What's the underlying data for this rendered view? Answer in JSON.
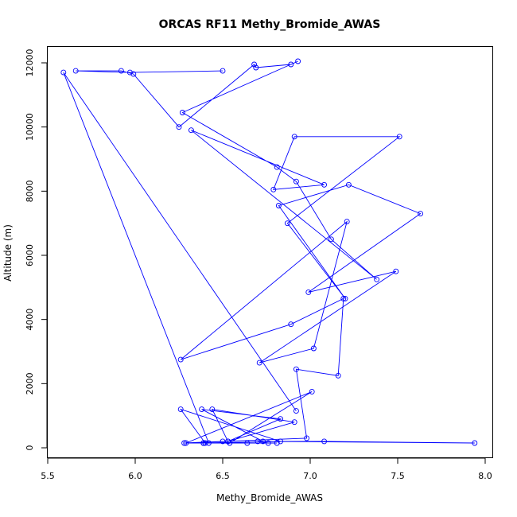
{
  "chart_data": {
    "type": "line",
    "title": "ORCAS RF11 Methy_Bromide_AWAS",
    "xlabel": "Methy_Bromide_AWAS",
    "ylabel": "Altitude (m)",
    "xlim": [
      5.5,
      8.0
    ],
    "ylim": [
      0,
      12000
    ],
    "xticks": [
      "5.5",
      "6.0",
      "6.5",
      "7.0",
      "7.5",
      "8.0"
    ],
    "yticks": [
      "0",
      "2000",
      "4000",
      "6000",
      "8000",
      "10000",
      "12000"
    ],
    "series": [
      {
        "color": "#0000ff",
        "marker": "open-circle",
        "points": [
          [
            6.5,
            11750
          ],
          [
            5.97,
            11700
          ],
          [
            5.66,
            11750
          ],
          [
            5.92,
            11750
          ],
          [
            5.99,
            11650
          ],
          [
            6.25,
            10000
          ],
          [
            6.68,
            11950
          ],
          [
            6.69,
            11850
          ],
          [
            6.89,
            11950
          ],
          [
            6.93,
            12050
          ],
          [
            6.27,
            10450
          ],
          [
            6.81,
            8750
          ],
          [
            6.92,
            8300
          ],
          [
            7.12,
            6500
          ],
          [
            7.38,
            5250
          ],
          [
            6.32,
            9900
          ],
          [
            7.08,
            8200
          ],
          [
            6.79,
            8050
          ],
          [
            6.91,
            9700
          ],
          [
            7.51,
            9700
          ],
          [
            6.87,
            7000
          ],
          [
            7.2,
            4650
          ],
          [
            6.82,
            7550
          ],
          [
            7.22,
            8200
          ],
          [
            7.63,
            7300
          ],
          [
            6.99,
            4850
          ],
          [
            7.49,
            5500
          ],
          [
            6.71,
            2650
          ],
          [
            7.02,
            3100
          ],
          [
            7.21,
            7050
          ],
          [
            6.26,
            2750
          ],
          [
            6.89,
            3850
          ],
          [
            7.19,
            4650
          ],
          [
            7.16,
            2250
          ],
          [
            6.92,
            2450
          ],
          [
            6.98,
            300
          ],
          [
            6.5,
            200
          ],
          [
            6.28,
            150
          ],
          [
            6.39,
            150
          ],
          [
            6.83,
            200
          ],
          [
            6.26,
            1200
          ],
          [
            6.4,
            150
          ],
          [
            6.54,
            150
          ],
          [
            7.01,
            1750
          ],
          [
            6.29,
            150
          ],
          [
            6.53,
            200
          ],
          [
            6.91,
            800
          ],
          [
            6.44,
            1200
          ],
          [
            6.53,
            200
          ],
          [
            6.83,
            900
          ],
          [
            6.38,
            1200
          ],
          [
            6.73,
            200
          ],
          [
            7.08,
            200
          ],
          [
            7.94,
            150
          ],
          [
            6.7,
            200
          ],
          [
            6.76,
            150
          ],
          [
            6.64,
            150
          ],
          [
            6.81,
            150
          ],
          [
            6.39,
            150
          ],
          [
            6.42,
            150
          ],
          [
            5.59,
            11700
          ],
          [
            6.92,
            1150
          ]
        ]
      }
    ]
  }
}
